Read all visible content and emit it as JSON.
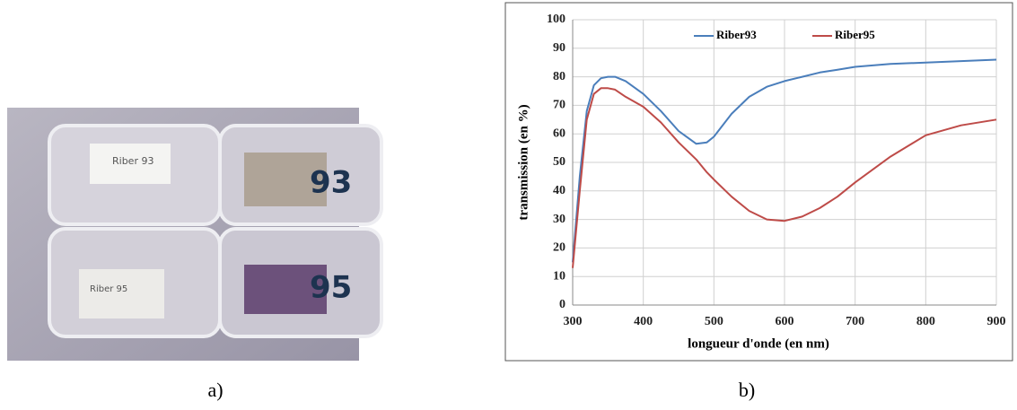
{
  "captions": [
    "a)",
    "b)"
  ],
  "photo": {
    "labels": [
      "Riber 93",
      "93",
      "95",
      "Riber 95"
    ]
  },
  "chart_data": {
    "type": "line",
    "x_label": "longueur d'onde (en nm)",
    "y_label": "transmission (en %)",
    "x": [
      300,
      310,
      320,
      330,
      340,
      350,
      360,
      375,
      400,
      425,
      450,
      475,
      490,
      500,
      525,
      550,
      575,
      600,
      625,
      650,
      675,
      700,
      750,
      800,
      850,
      900
    ],
    "series": [
      {
        "name": "Riber93",
        "color": "#4a7ebb",
        "values": [
          15,
          45,
          68,
          77,
          79.5,
          80,
          80,
          78.5,
          74,
          68,
          61,
          56.5,
          57,
          59,
          67,
          73,
          76.5,
          78.5,
          80,
          81.5,
          82.5,
          83.5,
          84.5,
          85,
          85.5,
          86
        ]
      },
      {
        "name": "Riber95",
        "color": "#be4b48",
        "values": [
          13,
          40,
          65,
          74,
          76,
          76,
          75.5,
          73,
          69.5,
          64,
          57,
          51,
          46.5,
          44,
          38,
          33,
          30,
          29.5,
          31,
          34,
          38,
          43,
          52,
          59.5,
          63,
          65
        ]
      }
    ],
    "xlim": [
      300,
      900
    ],
    "xticks": [
      300,
      400,
      500,
      600,
      700,
      800,
      900
    ],
    "ylim": [
      0,
      100
    ],
    "yticks": [
      0,
      10,
      20,
      30,
      40,
      50,
      60,
      70,
      80,
      90,
      100
    ],
    "grid": true,
    "legend": "top"
  }
}
